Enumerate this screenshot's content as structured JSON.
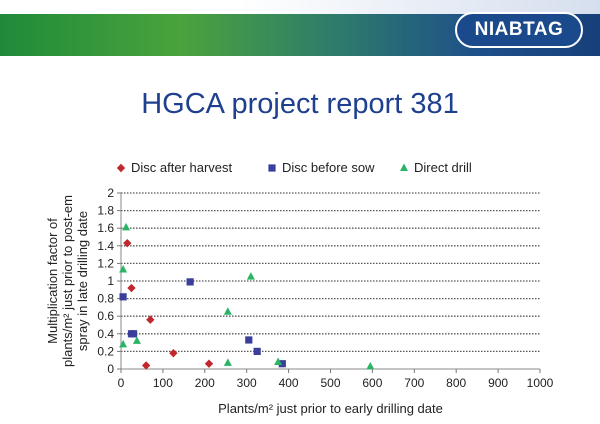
{
  "header": {
    "logo_text": "NIABTAG",
    "title": "HGCA project report 381"
  },
  "chart_data": {
    "type": "scatter",
    "xlabel": "Plants/m² just prior to early drilling date",
    "ylabel_lines": [
      "Multiplication factor of",
      "plants/m² just prior to post-em",
      "spray in late drilling date"
    ],
    "xlim": [
      0,
      1000
    ],
    "ylim": [
      0,
      2
    ],
    "xticks": [
      0,
      100,
      200,
      300,
      400,
      500,
      600,
      700,
      800,
      900,
      1000
    ],
    "yticks": [
      0,
      0.2,
      0.4,
      0.6,
      0.8,
      1,
      1.2,
      1.4,
      1.6,
      1.8,
      2
    ],
    "ytick_labels": [
      "0",
      "0.2",
      "0.4",
      "0.6",
      "0.8",
      "1",
      "1.2",
      "1.4",
      "1.6",
      "1.8",
      "2"
    ],
    "grid": "horizontal dotted",
    "legend_position": "top",
    "series": [
      {
        "name": "Disc after harvest",
        "marker": "diamond",
        "color": "#c0282d",
        "points": [
          [
            15,
            1.43
          ],
          [
            25,
            0.92
          ],
          [
            70,
            0.56
          ],
          [
            125,
            0.18
          ],
          [
            210,
            0.06
          ],
          [
            60,
            0.04
          ]
        ]
      },
      {
        "name": "Disc before sow",
        "marker": "square",
        "color": "#3b3f9a",
        "points": [
          [
            5,
            0.82
          ],
          [
            25,
            0.4
          ],
          [
            30,
            0.4
          ],
          [
            165,
            0.99
          ],
          [
            305,
            0.33
          ],
          [
            325,
            0.2
          ],
          [
            385,
            0.06
          ]
        ]
      },
      {
        "name": "Direct drill",
        "marker": "triangle",
        "color": "#2ab464",
        "points": [
          [
            12,
            1.61
          ],
          [
            5,
            1.13
          ],
          [
            5,
            0.28
          ],
          [
            38,
            0.32
          ],
          [
            255,
            0.65
          ],
          [
            310,
            1.05
          ],
          [
            255,
            0.07
          ],
          [
            375,
            0.08
          ],
          [
            595,
            0.03
          ]
        ]
      }
    ]
  }
}
